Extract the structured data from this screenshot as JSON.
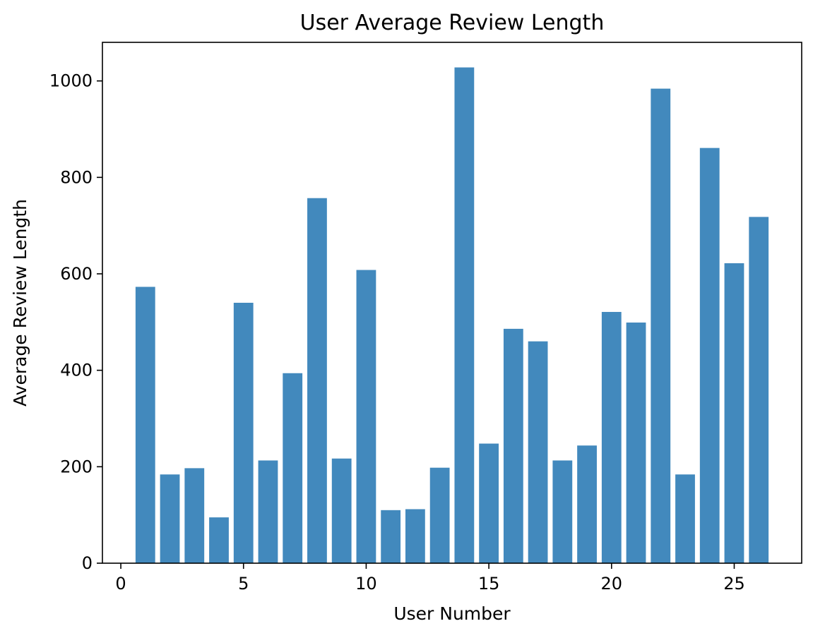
{
  "chart_data": {
    "type": "bar",
    "title": "User Average Review Length",
    "xlabel": "User Number",
    "ylabel": "Average Review Length",
    "x": [
      1,
      2,
      3,
      4,
      5,
      6,
      7,
      8,
      9,
      10,
      11,
      12,
      13,
      14,
      15,
      16,
      17,
      18,
      19,
      20,
      21,
      22,
      23,
      24,
      25,
      26
    ],
    "values": [
      573,
      184,
      197,
      95,
      540,
      213,
      394,
      757,
      217,
      608,
      110,
      112,
      198,
      1028,
      248,
      486,
      460,
      213,
      244,
      521,
      499,
      984,
      184,
      861,
      622,
      718
    ],
    "xlim": [
      -0.75,
      27.75
    ],
    "ylim": [
      0,
      1080
    ],
    "xticks": [
      0,
      5,
      10,
      15,
      20,
      25
    ],
    "yticks": [
      0,
      200,
      400,
      600,
      800,
      1000
    ],
    "bar_color": "#4289bd",
    "grid": false,
    "legend": "none"
  }
}
